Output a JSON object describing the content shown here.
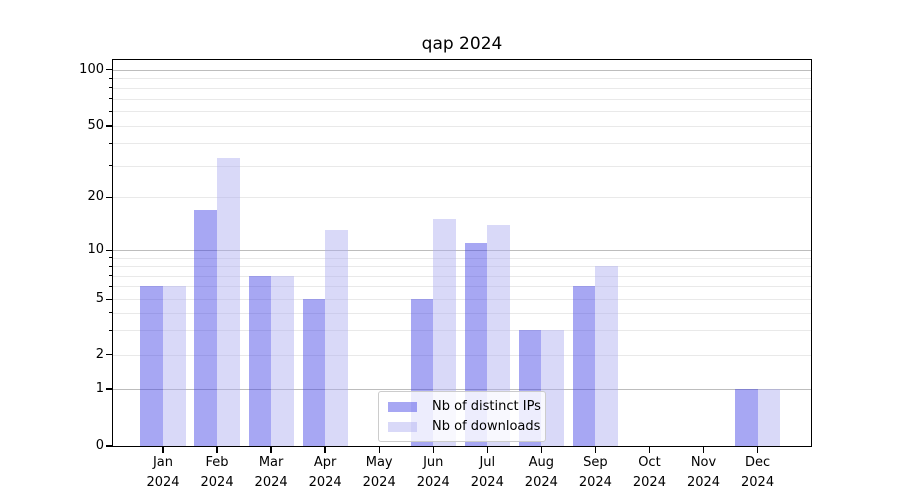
{
  "title": "qap 2024",
  "chart_data": {
    "type": "bar",
    "title": "qap 2024",
    "categories": [
      "Jan 2024",
      "Feb 2024",
      "Mar 2024",
      "Apr 2024",
      "May 2024",
      "Jun 2024",
      "Jul 2024",
      "Aug 2024",
      "Sep 2024",
      "Oct 2024",
      "Nov 2024",
      "Dec 2024"
    ],
    "series": [
      {
        "name": "Nb of distinct IPs",
        "color": "#a8a8f3",
        "fill": "rgba(60,60,228,0.45)",
        "values": [
          6,
          17,
          7,
          5,
          0,
          5,
          11,
          3,
          6,
          0,
          0,
          1
        ]
      },
      {
        "name": "Nb of downloads",
        "color": "#d9d9f8",
        "fill": "rgba(170,170,240,0.45)",
        "values": [
          6,
          33,
          7,
          13,
          0,
          15,
          14,
          3,
          8,
          0,
          0,
          1
        ]
      }
    ],
    "xlabel": "",
    "ylabel": "",
    "yticks": [
      0,
      1,
      2,
      5,
      10,
      20,
      50,
      100
    ],
    "major_grid_values": [
      1,
      10,
      100
    ],
    "minor_grid_values": [
      3,
      4,
      6,
      7,
      8,
      9,
      30,
      40,
      60,
      70,
      80,
      90
    ],
    "ylim": [
      0,
      113
    ],
    "yscale": "quasi-log (linear below 1)",
    "grid": true,
    "legend_position": "lower center"
  },
  "legend": {
    "items": [
      {
        "label": "Nb of distinct IPs",
        "swatch_color": "#a8a8f3"
      },
      {
        "label": "Nb of downloads",
        "swatch_color": "#d9d9f8"
      }
    ]
  },
  "colors": {
    "background": "#ffffff",
    "major_gridline": "#bdbdbd",
    "minor_gridline": "#e9e9e9",
    "axis": "#000000",
    "legend_border": "#cccccc",
    "text": "#000000"
  }
}
